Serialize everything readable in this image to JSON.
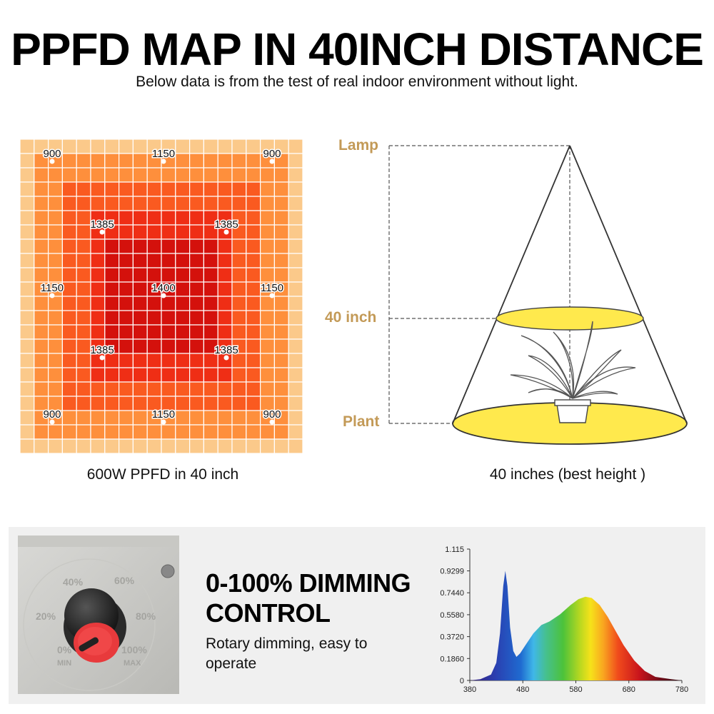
{
  "title": "PPFD MAP IN 40INCH DISTANCE",
  "subtitle": "Below data is from the test of real indoor environment without light.",
  "ppfd_map": {
    "caption": "600W PPFD in 40 inch",
    "points": [
      {
        "label": "900",
        "row": 0,
        "col": 0
      },
      {
        "label": "1150",
        "row": 0,
        "col": 2
      },
      {
        "label": "900",
        "row": 0,
        "col": 4
      },
      {
        "label": "1385",
        "row": 1,
        "col": 1
      },
      {
        "label": "1385",
        "row": 1,
        "col": 3
      },
      {
        "label": "1150",
        "row": 2,
        "col": 0
      },
      {
        "label": "1400",
        "row": 2,
        "col": 2
      },
      {
        "label": "1150",
        "row": 2,
        "col": 4
      },
      {
        "label": "1385",
        "row": 3,
        "col": 1
      },
      {
        "label": "1385",
        "row": 3,
        "col": 3
      },
      {
        "label": "900",
        "row": 4,
        "col": 0
      },
      {
        "label": "1150",
        "row": 4,
        "col": 2
      },
      {
        "label": "900",
        "row": 4,
        "col": 4
      }
    ],
    "colors": {
      "outer": "#fbc98a",
      "ring1": "#fe8f3c",
      "ring2": "#fa5a20",
      "ring3": "#ef2e15",
      "core": "#d4110c",
      "grid_line": "#ffffff"
    }
  },
  "cone_diagram": {
    "caption": "40 inches (best height )",
    "labels": {
      "lamp": "Lamp",
      "distance": "40 inch",
      "plant": "Plant"
    },
    "colors": {
      "label": "#c39a57",
      "light": "#ffe94d"
    }
  },
  "dimming": {
    "title_line1": "0-100% DIMMING",
    "title_line2": "CONTROL",
    "description": "Rotary dimming, easy to operate",
    "dial_labels": [
      "40%",
      "60%",
      "20%",
      "80%",
      "0%",
      "100%",
      "MIN",
      "MAX"
    ]
  },
  "spectrum": {
    "y_ticks": [
      "1.115",
      "0.9299",
      "0.7440",
      "0.5580",
      "0.3720",
      "0.1860",
      "0"
    ],
    "x_ticks": [
      "380",
      "480",
      "580",
      "680",
      "780"
    ],
    "curve": [
      [
        380,
        0
      ],
      [
        400,
        0.01
      ],
      [
        420,
        0.05
      ],
      [
        430,
        0.15
      ],
      [
        437,
        0.4
      ],
      [
        443,
        0.8
      ],
      [
        447,
        0.93
      ],
      [
        451,
        0.8
      ],
      [
        456,
        0.45
      ],
      [
        462,
        0.25
      ],
      [
        468,
        0.2
      ],
      [
        475,
        0.23
      ],
      [
        485,
        0.3
      ],
      [
        500,
        0.4
      ],
      [
        515,
        0.47
      ],
      [
        530,
        0.5
      ],
      [
        550,
        0.56
      ],
      [
        570,
        0.64
      ],
      [
        585,
        0.69
      ],
      [
        598,
        0.71
      ],
      [
        610,
        0.7
      ],
      [
        625,
        0.64
      ],
      [
        640,
        0.54
      ],
      [
        655,
        0.42
      ],
      [
        670,
        0.3
      ],
      [
        690,
        0.17
      ],
      [
        710,
        0.08
      ],
      [
        730,
        0.03
      ],
      [
        760,
        0.01
      ],
      [
        780,
        0
      ]
    ]
  }
}
